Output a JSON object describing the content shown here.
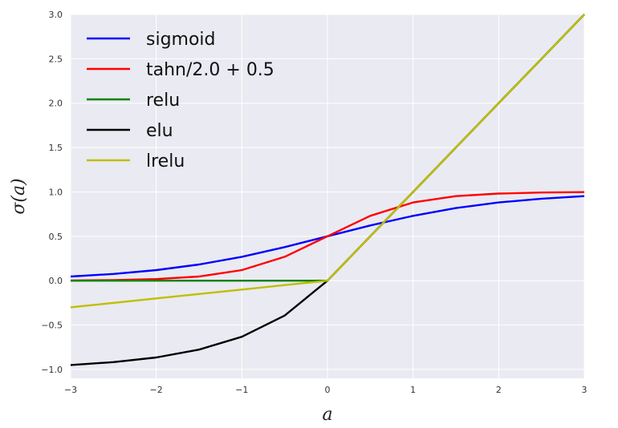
{
  "chart_data": {
    "type": "line",
    "title": "",
    "xlabel": "a",
    "ylabel": "σ(a)",
    "xlim": [
      -3,
      3
    ],
    "ylim": [
      -1.1,
      3.0
    ],
    "xticks": [
      -3,
      -2,
      -1,
      0,
      1,
      2,
      3
    ],
    "yticks": [
      -1.0,
      -0.5,
      0.0,
      0.5,
      1.0,
      1.5,
      2.0,
      2.5,
      3.0
    ],
    "xtick_labels": [
      "−3",
      "−2",
      "−1",
      "0",
      "1",
      "2",
      "3"
    ],
    "ytick_labels": [
      "−1.0",
      "−0.5",
      "0.0",
      "0.5",
      "1.0",
      "1.5",
      "2.0",
      "2.5",
      "3.0"
    ],
    "grid": true,
    "legend_position": "top-left",
    "x": [
      -3.0,
      -2.5,
      -2.0,
      -1.5,
      -1.0,
      -0.5,
      0.0,
      0.5,
      1.0,
      1.5,
      2.0,
      2.5,
      3.0
    ],
    "series": [
      {
        "name": "sigmoid",
        "color": "#0000ff",
        "values": [
          0.047,
          0.076,
          0.119,
          0.182,
          0.269,
          0.378,
          0.5,
          0.622,
          0.731,
          0.818,
          0.881,
          0.924,
          0.953
        ]
      },
      {
        "name": "tahn/2.0 + 0.5",
        "color": "#ff0000",
        "values": [
          0.002,
          0.007,
          0.018,
          0.047,
          0.119,
          0.269,
          0.5,
          0.731,
          0.881,
          0.953,
          0.982,
          0.993,
          0.998
        ]
      },
      {
        "name": "relu",
        "color": "#008000",
        "values": [
          0.0,
          0.0,
          0.0,
          0.0,
          0.0,
          0.0,
          0.0,
          0.5,
          1.0,
          1.5,
          2.0,
          2.5,
          3.0
        ]
      },
      {
        "name": "elu",
        "color": "#000000",
        "values": [
          -0.95,
          -0.918,
          -0.865,
          -0.777,
          -0.632,
          -0.393,
          0.0,
          0.5,
          1.0,
          1.5,
          2.0,
          2.5,
          3.0
        ]
      },
      {
        "name": "lrelu",
        "color": "#bfbf00",
        "values": [
          -0.3,
          -0.25,
          -0.2,
          -0.15,
          -0.1,
          -0.05,
          0.0,
          0.5,
          1.0,
          1.5,
          2.0,
          2.5,
          3.0
        ]
      }
    ]
  }
}
